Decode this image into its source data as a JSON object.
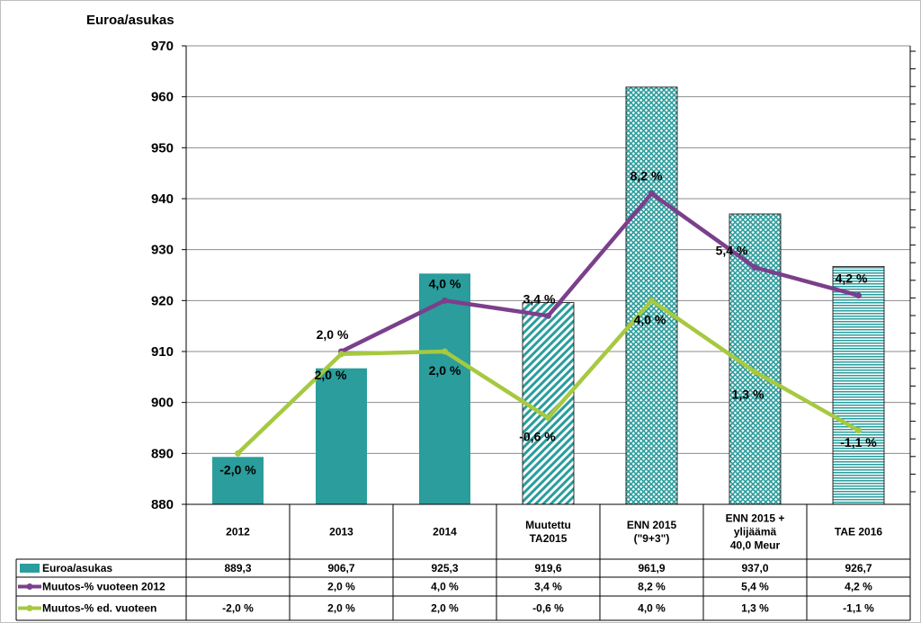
{
  "chart_data": {
    "type": "bar",
    "ylabel": "Euroa/asukas",
    "ylim": [
      880,
      970
    ],
    "yticks": [
      "970",
      "960",
      "950",
      "940",
      "930",
      "920",
      "910",
      "900",
      "890",
      "880"
    ],
    "grid": true,
    "categories": [
      [
        "2012"
      ],
      [
        "2013"
      ],
      [
        "2014"
      ],
      [
        "Muutettu",
        "TA2015"
      ],
      [
        "ENN 2015",
        "(\"9+3\")"
      ],
      [
        "ENN 2015 +",
        "ylijäämä",
        "40,0 Meur"
      ],
      [
        "TAE 2016"
      ]
    ],
    "bar_styles": [
      "solid",
      "solid",
      "solid",
      "diagonal",
      "crosshatch",
      "crosshatch",
      "horizontal"
    ],
    "series": [
      {
        "name": "Euroa/asukas",
        "kind": "bar",
        "color": "#2a9d9c",
        "values": [
          889.3,
          906.7,
          925.3,
          919.6,
          961.9,
          937.0,
          926.7
        ],
        "table_labels": [
          "889,3",
          "906,7",
          "925,3",
          "919,6",
          "961,9",
          "937,0",
          "926,7"
        ]
      },
      {
        "name": "Muutos-% vuoteen 2012",
        "kind": "line",
        "color": "#7b3f8c",
        "plot_values": [
          null,
          910.0,
          920.0,
          917.0,
          941.0,
          926.5,
          921.0
        ],
        "table_labels": [
          "",
          "2,0 %",
          "4,0 %",
          "3,4 %",
          "8,2 %",
          "5,4 %",
          "4,2 %"
        ]
      },
      {
        "name": "Muutos-% ed. vuoteen",
        "kind": "line",
        "color": "#a6c940",
        "plot_values": [
          890.0,
          909.5,
          910.0,
          897.0,
          920.0,
          906.0,
          894.5
        ],
        "table_labels": [
          "-2,0 %",
          "2,0 %",
          "2,0 %",
          "-0,6 %",
          "4,0 %",
          "1,3 %",
          "-1,1 %"
        ]
      }
    ]
  }
}
